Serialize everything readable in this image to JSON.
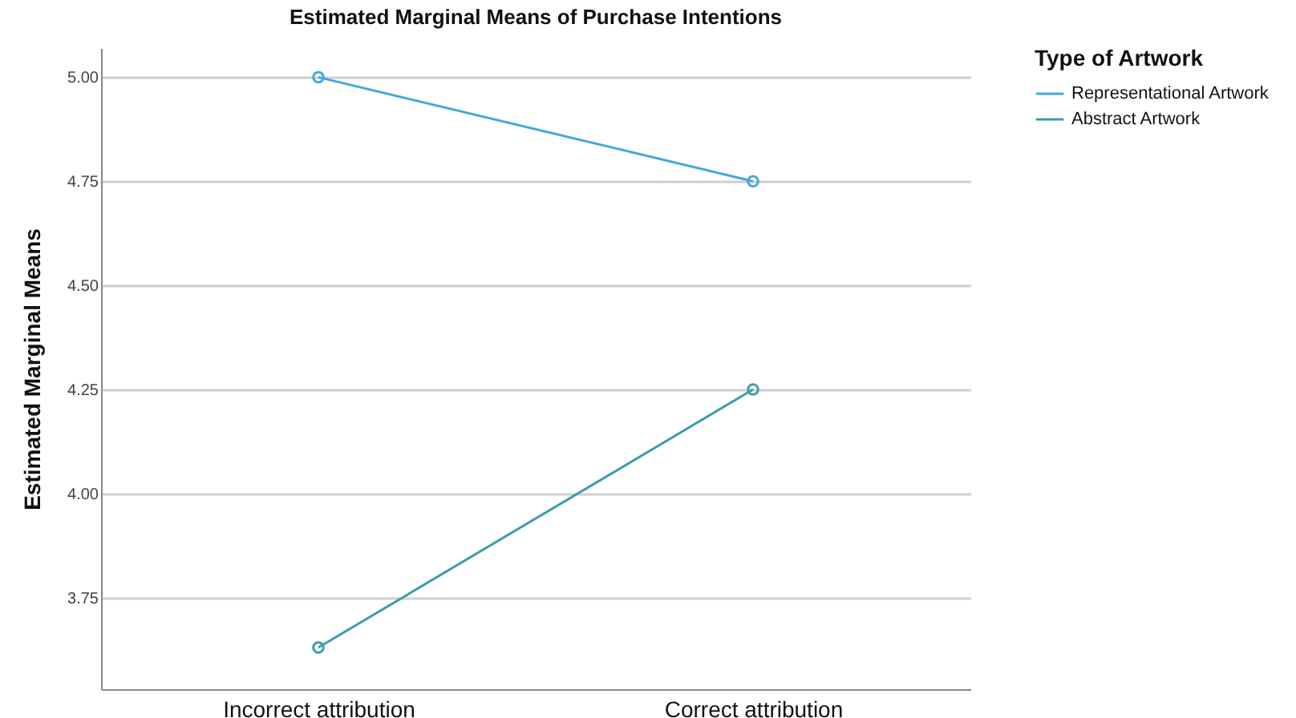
{
  "chart_data": {
    "type": "line",
    "title": "Estimated Marginal Means of Purchase Intentions",
    "ylabel": "Estimated Marginal Means",
    "legend_title": "Type of Artwork",
    "categories": [
      "Incorrect attribution",
      "Correct attribution"
    ],
    "series": [
      {
        "name": "Representational Artwork",
        "color": "#42a8dc",
        "values": [
          5.0,
          4.75
        ]
      },
      {
        "name": "Abstract Artwork",
        "color": "#3a9eaa",
        "values": [
          3.63,
          4.25
        ]
      }
    ],
    "ylim": [
      3.53,
      5.07
    ],
    "yticks": [
      {
        "value": 3.75,
        "label": "3.75"
      },
      {
        "value": 4.0,
        "label": "4.00"
      },
      {
        "value": 4.25,
        "label": "4.25"
      },
      {
        "value": 4.5,
        "label": "4.50"
      },
      {
        "value": 4.75,
        "label": "4.75"
      },
      {
        "value": 5.0,
        "label": "5.00"
      }
    ],
    "grid": "y",
    "legend": "top right",
    "marker": "circle",
    "line_style": "solid"
  }
}
